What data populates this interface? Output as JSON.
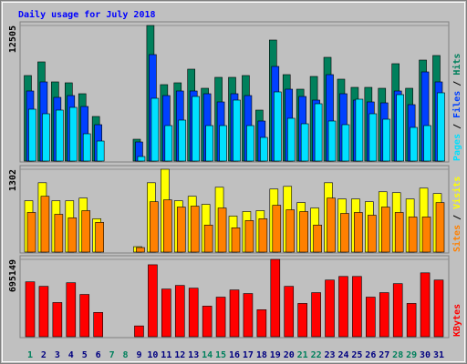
{
  "title": "Daily usage for July 2018",
  "categories": [
    "1",
    "2",
    "3",
    "4",
    "5",
    "6",
    "7",
    "8",
    "9",
    "10",
    "11",
    "12",
    "13",
    "14",
    "15",
    "16",
    "17",
    "18",
    "19",
    "20",
    "21",
    "22",
    "23",
    "24",
    "25",
    "26",
    "27",
    "28",
    "29",
    "30",
    "31"
  ],
  "category_colors": [
    "#00805c",
    "#000080",
    "#000080",
    "#000080",
    "#000080",
    "#000080",
    "#00805c",
    "#00805c",
    "#000080",
    "#000080",
    "#000080",
    "#000080",
    "#000080",
    "#00805c",
    "#00805c",
    "#000080",
    "#000080",
    "#000080",
    "#000080",
    "#000080",
    "#00805c",
    "#00805c",
    "#000080",
    "#000080",
    "#000080",
    "#000080",
    "#000080",
    "#00805c",
    "#00805c",
    "#000080",
    "#000080"
  ],
  "chart_data": [
    {
      "type": "bar",
      "ylim": [
        0,
        12505
      ],
      "yticks": [
        12505
      ],
      "legend_separator": "/",
      "series": [
        {
          "name": "Hits",
          "color": "#00805c",
          "values": [
            7889,
            9148,
            7302,
            7218,
            6211,
            4113,
            0,
            0,
            2014,
            12505,
            7050,
            7218,
            8477,
            6714,
            7722,
            7722,
            7889,
            4700,
            11163,
            7973,
            6630,
            7805,
            9568,
            7554,
            6798,
            6798,
            6714,
            8981,
            6714,
            9316,
            9736
          ]
        },
        {
          "name": "Files",
          "color": "#0040ff",
          "values": [
            6463,
            7302,
            5875,
            6043,
            5036,
            3357,
            0,
            0,
            1762,
            9820,
            6043,
            6463,
            6463,
            6211,
            5455,
            6211,
            6043,
            3693,
            8729,
            6630,
            5959,
            5623,
            7973,
            6211,
            5623,
            5455,
            5371,
            6463,
            5204,
            8225,
            7302
          ]
        },
        {
          "name": "Pages",
          "color": "#00e0ff",
          "values": [
            4784,
            4364,
            4700,
            4952,
            2518,
            1846,
            0,
            0,
            420,
            5791,
            3273,
            3777,
            5959,
            3273,
            3273,
            5623,
            3273,
            2182,
            6379,
            3945,
            3441,
            5288,
            3693,
            3357,
            5707,
            4364,
            3861,
            6127,
            3105,
            3273,
            6295
          ]
        }
      ]
    },
    {
      "type": "bar",
      "ylim": [
        0,
        1302
      ],
      "yticks": [
        1302
      ],
      "legend_separator": "/",
      "series": [
        {
          "name": "Visits",
          "color": "#ffff00",
          "values": [
            807,
            1090,
            807,
            807,
            849,
            524,
            0,
            0,
            85,
            1090,
            1302,
            807,
            877,
            750,
            1019,
            566,
            637,
            651,
            991,
            1033,
            778,
            693,
            1090,
            835,
            835,
            792,
            948,
            934,
            835,
            1005,
            920
          ]
        },
        {
          "name": "Sites",
          "color": "#ff8000",
          "values": [
            623,
            877,
            594,
            538,
            651,
            467,
            0,
            0,
            71,
            792,
            821,
            708,
            722,
            425,
            693,
            382,
            495,
            524,
            736,
            665,
            637,
            425,
            849,
            608,
            623,
            580,
            708,
            623,
            552,
            552,
            778
          ]
        }
      ]
    },
    {
      "type": "bar",
      "ylim": [
        0,
        695149
      ],
      "yticks": [
        695149
      ],
      "legend_separator": "/",
      "series": [
        {
          "name": "KBytes",
          "color": "#ff0000",
          "values": [
            493063,
            452648,
            307154,
            484980,
            379901,
            218241,
            0,
            0,
            96996,
            646640,
            428399,
            460731,
            436482,
            274822,
            355652,
            420316,
            387984,
            242490,
            695149,
            452648,
            299071,
            396067,
            509229,
            541561,
            541561,
            355652,
            396067,
            476897,
            299071,
            573893,
            509229
          ]
        }
      ]
    }
  ]
}
